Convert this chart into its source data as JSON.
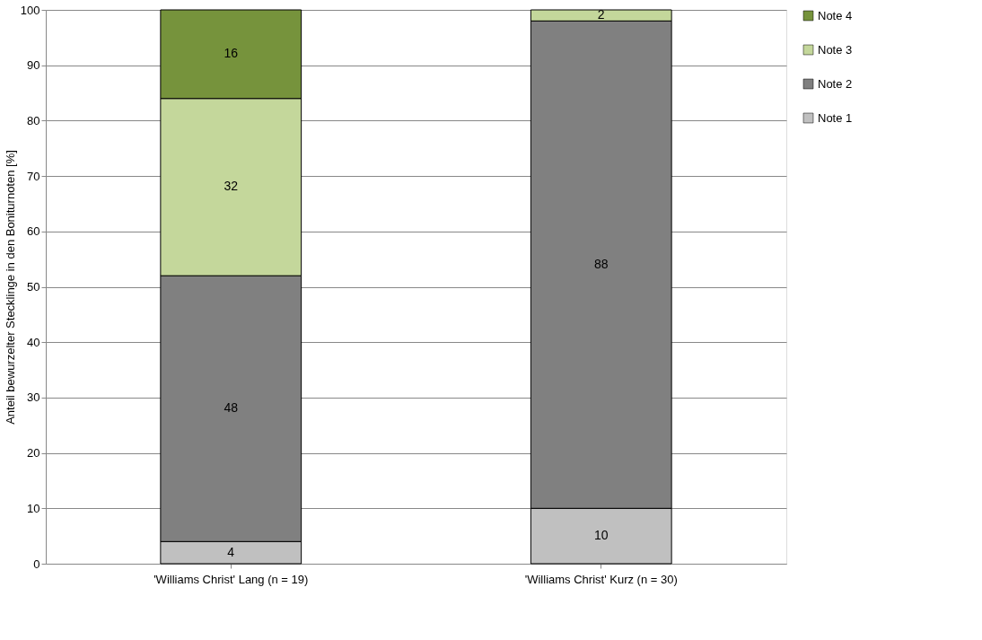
{
  "chart_data": {
    "type": "bar",
    "stacked": true,
    "ylabel": "Anteil bewurzelter Stecklinge in den Boniturnoten [%]",
    "categories": [
      "'Williams Christ' Lang (n = 19)",
      "'Williams Christ' Kurz (n = 30)"
    ],
    "series": [
      {
        "name": "Note 1",
        "color": "#c0c0c0",
        "values": [
          4,
          10
        ]
      },
      {
        "name": "Note 2",
        "color": "#808080",
        "values": [
          48,
          88
        ]
      },
      {
        "name": "Note 3",
        "color": "#c4d79b",
        "values": [
          32,
          2
        ]
      },
      {
        "name": "Note 4",
        "color": "#76933c",
        "values": [
          16,
          null
        ]
      }
    ],
    "ylim": [
      0,
      100
    ],
    "yticks": [
      0,
      10,
      20,
      30,
      40,
      50,
      60,
      70,
      80,
      90,
      100
    ],
    "grid": "y",
    "legend": "right",
    "data_labels": true
  }
}
